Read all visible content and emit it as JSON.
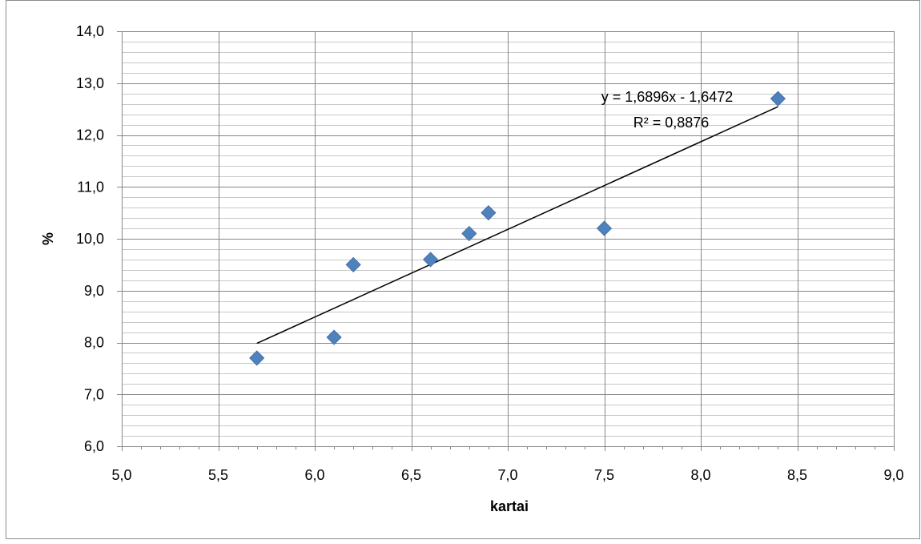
{
  "chart_data": {
    "type": "scatter",
    "title": "",
    "xlabel": "kartai",
    "ylabel": "%",
    "xlim": [
      5.0,
      9.0
    ],
    "ylim": [
      6.0,
      14.0
    ],
    "x_major_step": 0.5,
    "x_minor_step": 0.1,
    "y_major_step": 1.0,
    "y_minor_step": 0.2,
    "tick_decimal_separator": ",",
    "tick_decimals": 1,
    "grid": true,
    "legend": "none",
    "series": [
      {
        "points": [
          {
            "x": 5.7,
            "y": 7.7
          },
          {
            "x": 6.1,
            "y": 8.1
          },
          {
            "x": 6.2,
            "y": 9.5
          },
          {
            "x": 6.6,
            "y": 9.6
          },
          {
            "x": 6.8,
            "y": 10.1
          },
          {
            "x": 6.9,
            "y": 10.5
          },
          {
            "x": 7.5,
            "y": 10.2
          },
          {
            "x": 8.4,
            "y": 12.7
          }
        ],
        "color": "#4f81bd",
        "marker": "diamond"
      }
    ],
    "trendline": {
      "type": "linear",
      "slope": 1.6896,
      "intercept": -1.6472,
      "x_range": [
        5.7,
        8.4
      ],
      "color": "#000000",
      "equation_label": "y = 1,6896x - 1,6472",
      "r2_label": "R² = 0,8876"
    }
  }
}
